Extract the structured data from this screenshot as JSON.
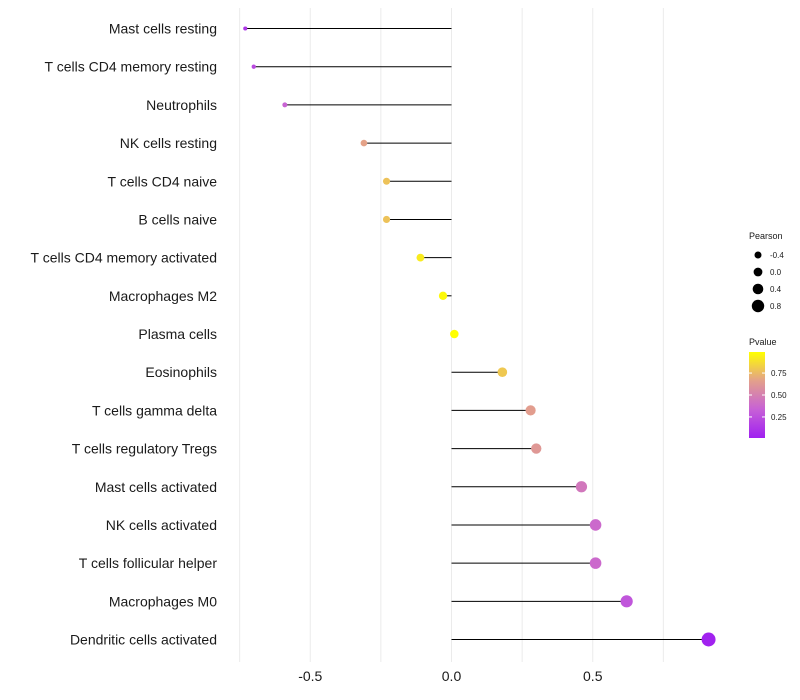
{
  "chart_data": {
    "type": "lollipop",
    "title": "",
    "xlabel": "",
    "ylabel": "",
    "xlim": [
      -0.76,
      0.95
    ],
    "x_ticks": [
      -0.5,
      0.0,
      0.5
    ],
    "x_tick_labels": [
      "-0.5",
      "0.0",
      "0.5"
    ],
    "grid": true,
    "categories": [
      "Mast cells resting",
      "T cells CD4 memory resting",
      "Neutrophils",
      "NK cells resting",
      "T cells CD4 naive",
      "B cells naive",
      "T cells CD4 memory activated",
      "Macrophages M2",
      "Plasma cells",
      "Eosinophils",
      "T cells gamma delta",
      "T cells regulatory  Tregs",
      "Mast cells activated",
      "NK cells activated",
      "T cells follicular helper",
      "Macrophages M0",
      "Dendritic cells activated"
    ],
    "pearson": [
      -0.73,
      -0.7,
      -0.59,
      -0.31,
      -0.23,
      -0.23,
      -0.11,
      -0.03,
      0.01,
      0.18,
      0.28,
      0.3,
      0.46,
      0.51,
      0.51,
      0.62,
      0.91
    ],
    "pvalue": [
      0.12,
      0.22,
      0.35,
      0.67,
      0.78,
      0.78,
      0.92,
      0.97,
      0.99,
      0.8,
      0.65,
      0.62,
      0.45,
      0.38,
      0.38,
      0.28,
      0.02
    ],
    "legend_position": "right",
    "size_legend": {
      "title": "Pearson",
      "values": [
        -0.4,
        0.0,
        0.4,
        0.8
      ],
      "labels": [
        "-0.4",
        "0.0",
        "0.4",
        "0.8"
      ]
    },
    "color_legend": {
      "title": "Pvalue",
      "range": [
        0.01,
        0.99
      ],
      "ticks": [
        0.25,
        0.5,
        0.75
      ],
      "labels": [
        "0.25",
        "0.50",
        "0.75"
      ],
      "colors": [
        "#A020F0",
        "#C761D6",
        "#E3A08B",
        "#FFFF00"
      ]
    }
  }
}
